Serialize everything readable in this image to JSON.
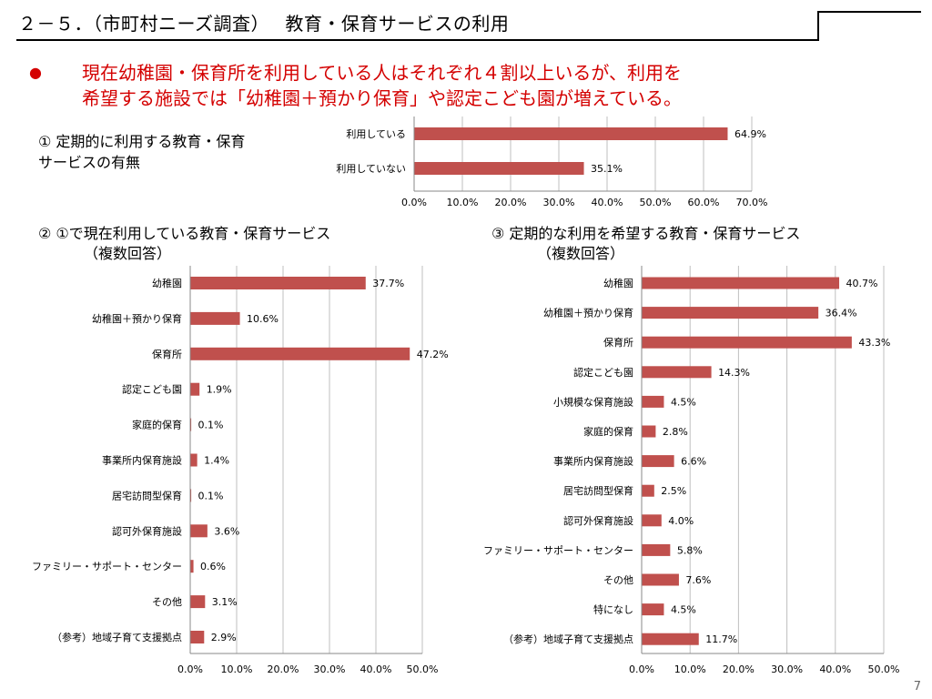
{
  "header": {
    "title": "２－５．（市町村ニーズ調査）　 教育・保育サービスの利用"
  },
  "summary": {
    "bullet": "●",
    "line1": "現在幼稚園・保育所を利用している人はそれぞれ４割以上いるが、利用を",
    "line2": "希望する施設では「幼稚園＋預かり保育」や認定こども園が増えている。"
  },
  "sections": {
    "s1_line1": "① 定期的に利用する教育・保育",
    "s1_line2": "サービスの有無",
    "s2_line1": "② ①で現在利用している教育・保育サービス",
    "s2_line2": "（複数回答）",
    "s3_line1": "③ 定期的な利用を希望する教育・保育サービス",
    "s3_line2": "（複数回答）"
  },
  "page_number": "7",
  "colors": {
    "bar": "#c0504d",
    "grid": "#bfbfbf",
    "axis": "#888888"
  },
  "chart_data": [
    {
      "type": "bar",
      "orientation": "horizontal",
      "categories": [
        "利用している",
        "利用していない"
      ],
      "values": [
        64.9,
        35.1
      ],
      "value_labels": [
        "64.9%",
        "35.1%"
      ],
      "ticks": [
        "0.0%",
        "10.0%",
        "20.0%",
        "30.0%",
        "40.0%",
        "50.0%",
        "60.0%",
        "70.0%"
      ],
      "xlim": [
        0,
        70
      ],
      "grid": true
    },
    {
      "type": "bar",
      "orientation": "horizontal",
      "categories": [
        "幼稚園",
        "幼稚園＋預かり保育",
        "保育所",
        "認定こども園",
        "家庭的保育",
        "事業所内保育施設",
        "居宅訪問型保育",
        "認可外保育施設",
        "ファミリー・サポート・センター",
        "その他",
        "（参考）地域子育て支援拠点"
      ],
      "values": [
        37.7,
        10.6,
        47.2,
        1.9,
        0.1,
        1.4,
        0.1,
        3.6,
        0.6,
        3.1,
        2.9
      ],
      "value_labels": [
        "37.7%",
        "10.6%",
        "47.2%",
        "1.9%",
        "0.1%",
        "1.4%",
        "0.1%",
        "3.6%",
        "0.6%",
        "3.1%",
        "2.9%"
      ],
      "ticks": [
        "0.0%",
        "10.0%",
        "20.0%",
        "30.0%",
        "40.0%",
        "50.0%"
      ],
      "xlim": [
        0,
        50
      ],
      "grid": true
    },
    {
      "type": "bar",
      "orientation": "horizontal",
      "categories": [
        "幼稚園",
        "幼稚園＋預かり保育",
        "保育所",
        "認定こども園",
        "小規模な保育施設",
        "家庭的保育",
        "事業所内保育施設",
        "居宅訪問型保育",
        "認可外保育施設",
        "ファミリー・サポート・センター",
        "その他",
        "特になし",
        "（参考）地域子育て支援拠点"
      ],
      "values": [
        40.7,
        36.4,
        43.3,
        14.3,
        4.5,
        2.8,
        6.6,
        2.5,
        4.0,
        5.8,
        7.6,
        4.5,
        11.7
      ],
      "value_labels": [
        "40.7%",
        "36.4%",
        "43.3%",
        "14.3%",
        "4.5%",
        "2.8%",
        "6.6%",
        "2.5%",
        "4.0%",
        "5.8%",
        "7.6%",
        "4.5%",
        "11.7%"
      ],
      "ticks": [
        "0.0%",
        "10.0%",
        "20.0%",
        "30.0%",
        "40.0%",
        "50.0%"
      ],
      "xlim": [
        0,
        50
      ],
      "grid": true
    }
  ]
}
